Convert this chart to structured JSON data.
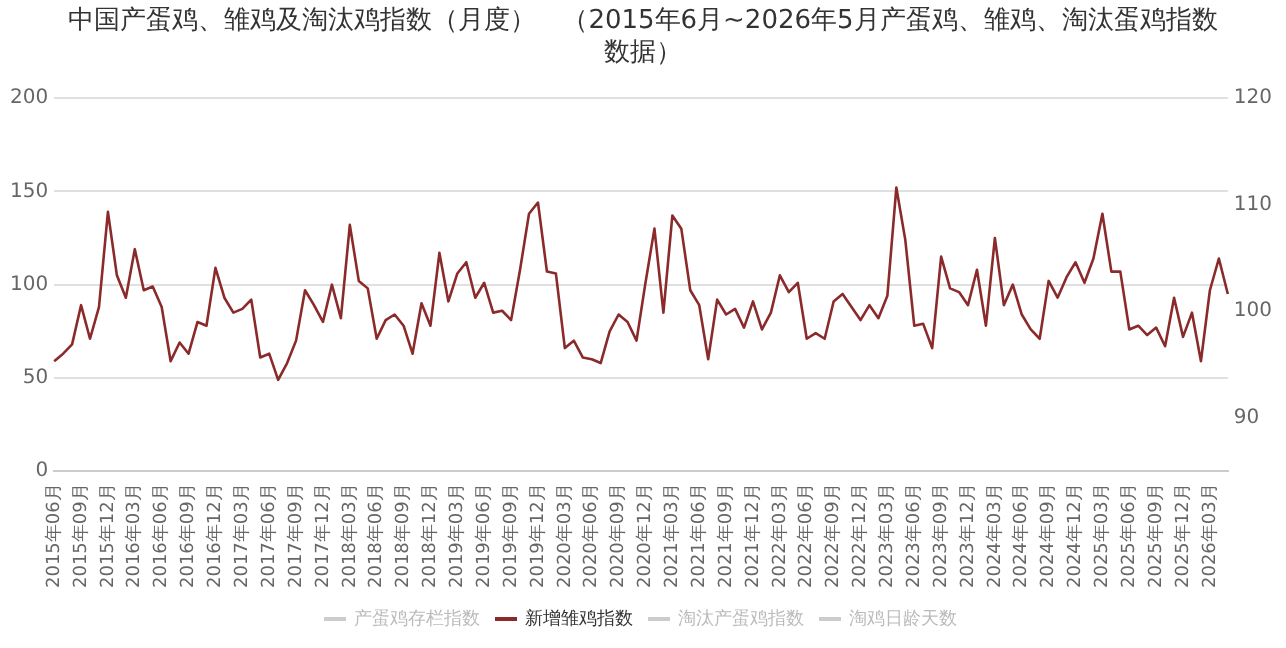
{
  "chart_data": {
    "type": "line",
    "title": "中国产蛋鸡、雏鸡及淘汰鸡指数（月度）　（2015年6月~2026年5月产蛋鸡、雏鸡、淘汰蛋鸡指数数据）",
    "categories": [
      "2015年06月",
      null,
      null,
      "2015年09月",
      null,
      null,
      "2015年12月",
      null,
      null,
      "2016年03月",
      null,
      null,
      "2016年06月",
      null,
      null,
      "2016年09月",
      null,
      null,
      "2016年12月",
      null,
      null,
      "2017年03月",
      null,
      null,
      "2017年06月",
      null,
      null,
      "2017年09月",
      null,
      null,
      "2017年12月",
      null,
      null,
      "2018年03月",
      null,
      null,
      "2018年06月",
      null,
      null,
      "2018年09月",
      null,
      null,
      "2018年12月",
      null,
      null,
      "2019年03月",
      null,
      null,
      "2019年06月",
      null,
      null,
      "2019年09月",
      null,
      null,
      "2019年12月",
      null,
      null,
      "2020年03月",
      null,
      null,
      "2020年06月",
      null,
      null,
      "2020年09月",
      null,
      null,
      "2020年12月",
      null,
      null,
      "2021年03月",
      null,
      null,
      "2021年06月",
      null,
      null,
      "2021年09月",
      null,
      null,
      "2021年12月",
      null,
      null,
      "2022年03月",
      null,
      null,
      "2022年06月",
      null,
      null,
      "2022年09月",
      null,
      null,
      "2022年12月",
      null,
      null,
      "2023年03月",
      null,
      null,
      "2023年06月",
      null,
      null,
      "2023年09月",
      null,
      null,
      "2023年12月",
      null,
      null,
      "2024年03月",
      null,
      null,
      "2024年06月",
      null,
      null,
      "2024年09月",
      null,
      null,
      "2024年12月",
      null,
      null,
      "2025年03月",
      null,
      null,
      "2025年06月",
      null,
      null,
      "2025年09月",
      null,
      null,
      "2025年12月",
      null,
      null,
      "2026年03月",
      null,
      null
    ],
    "series": [
      {
        "name": "产蛋鸡存栏指数",
        "color": "#cccccc",
        "values": [
          null,
          null,
          null,
          null,
          null,
          null,
          null,
          null,
          null,
          null,
          null,
          null,
          null,
          null,
          null,
          null,
          null,
          null,
          null,
          null,
          null,
          null,
          null,
          null,
          null,
          null,
          null,
          null,
          null,
          null,
          null,
          null,
          null,
          null,
          null,
          null,
          null,
          null,
          null,
          null,
          null,
          null,
          null,
          null,
          null,
          null,
          null,
          null,
          null,
          null,
          null,
          null,
          null,
          null,
          null,
          null,
          null,
          null,
          null,
          null,
          null,
          null,
          null,
          null,
          null,
          null,
          null,
          null,
          null,
          null,
          null,
          null,
          null,
          null,
          null,
          null,
          null,
          null,
          null,
          null,
          null,
          null,
          null,
          null,
          null,
          null,
          null,
          null,
          null,
          null,
          null,
          null,
          null,
          null,
          null,
          null,
          null,
          null,
          null,
          null,
          null,
          null,
          null,
          null,
          null,
          null,
          null,
          null,
          null,
          null,
          null,
          null,
          null,
          null,
          null,
          null,
          null,
          null,
          null,
          null,
          null,
          null,
          null,
          null,
          null,
          null,
          null,
          null,
          null,
          null,
          null,
          null
        ]
      },
      {
        "name": "新增雏鸡指数",
        "color": "#8b2a2a",
        "values": [
          59,
          63,
          68,
          89,
          71,
          88,
          139,
          105,
          93,
          119,
          97,
          99,
          88,
          59,
          69,
          63,
          80,
          78,
          109,
          93,
          85,
          87,
          92,
          61,
          63,
          49,
          58,
          70,
          97,
          89,
          80,
          100,
          82,
          132,
          102,
          98,
          71,
          81,
          84,
          78,
          63,
          90,
          78,
          117,
          91,
          106,
          112,
          93,
          101,
          85,
          86,
          81,
          108,
          138,
          144,
          107,
          106,
          66,
          70,
          61,
          60,
          58,
          75,
          84,
          80,
          70,
          101,
          130,
          85,
          137,
          130,
          97,
          89,
          60,
          92,
          84,
          87,
          77,
          91,
          76,
          85,
          105,
          96,
          101,
          71,
          74,
          71,
          91,
          95,
          88,
          81,
          89,
          82,
          94,
          152,
          124,
          78,
          79,
          66,
          115,
          98,
          96,
          89,
          108,
          78,
          125,
          89,
          100,
          84,
          76,
          71,
          102,
          93,
          104,
          112,
          101,
          114,
          138,
          107,
          107,
          76,
          78,
          73,
          77,
          67,
          93,
          72,
          85,
          59,
          97,
          114,
          95
        ]
      },
      {
        "name": "淘汰产蛋鸡指数",
        "color": "#cccccc",
        "values": [
          null,
          null,
          null,
          null,
          null,
          null,
          null,
          null,
          null,
          null,
          null,
          null,
          null,
          null,
          null,
          null,
          null,
          null,
          null,
          null,
          null,
          null,
          null,
          null,
          null,
          null,
          null,
          null,
          null,
          null,
          null,
          null,
          null,
          null,
          null,
          null,
          null,
          null,
          null,
          null,
          null,
          null,
          null,
          null,
          null,
          null,
          null,
          null,
          null,
          null,
          null,
          null,
          null,
          null,
          null,
          null,
          null,
          null,
          null,
          null,
          null,
          null,
          null,
          null,
          null,
          null,
          null,
          null,
          null,
          null,
          null,
          null,
          null,
          null,
          null,
          null,
          null,
          null,
          null,
          null,
          null,
          null,
          null,
          null,
          null,
          null,
          null,
          null,
          null,
          null,
          null,
          null,
          null,
          null,
          null,
          null,
          null,
          null,
          null,
          null,
          null,
          null,
          null,
          null,
          null,
          null,
          null,
          null,
          null,
          null,
          null,
          null,
          null,
          null,
          null,
          null,
          null,
          null,
          null,
          null,
          null,
          null,
          null,
          null,
          null,
          null,
          null,
          null,
          null,
          null,
          null,
          null
        ]
      },
      {
        "name": "淘鸡日龄天数",
        "color": "#cccccc",
        "values": [
          null,
          null,
          null,
          null,
          null,
          null,
          null,
          null,
          null,
          null,
          null,
          null,
          null,
          null,
          null,
          null,
          null,
          null,
          null,
          null,
          null,
          null,
          null,
          null,
          null,
          null,
          null,
          null,
          null,
          null,
          null,
          null,
          null,
          null,
          null,
          null,
          null,
          null,
          null,
          null,
          null,
          null,
          null,
          null,
          null,
          null,
          null,
          null,
          null,
          null,
          null,
          null,
          null,
          null,
          null,
          null,
          null,
          null,
          null,
          null,
          null,
          null,
          null,
          null,
          null,
          null,
          null,
          null,
          null,
          null,
          null,
          null,
          null,
          null,
          null,
          null,
          null,
          null,
          null,
          null,
          null,
          null,
          null,
          null,
          null,
          null,
          null,
          null,
          null,
          null,
          null,
          null,
          null,
          null,
          null,
          null,
          null,
          null,
          null,
          null,
          null,
          null,
          null,
          null,
          null,
          null,
          null,
          null,
          null,
          null,
          null,
          null,
          null,
          null,
          null,
          null,
          null,
          null,
          null,
          null,
          null,
          null,
          null,
          null,
          null,
          null,
          null,
          null,
          null,
          null,
          null,
          null
        ]
      }
    ],
    "ylim": [
      0,
      200
    ],
    "yticks": [
      0,
      50,
      100,
      150,
      200
    ],
    "y2lim": [
      85,
      120
    ],
    "y2ticks": [
      90,
      100,
      110,
      120
    ],
    "grid": "y",
    "legend": "bottom",
    "marker": "none",
    "line_style": "solid"
  }
}
